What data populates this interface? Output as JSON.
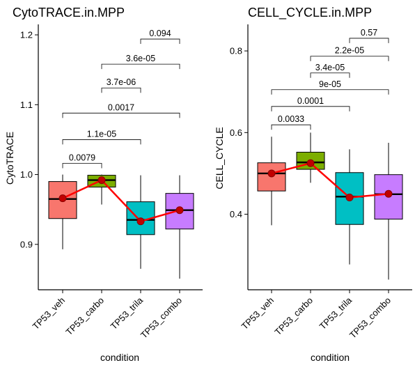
{
  "chart_data": [
    {
      "type": "box",
      "title": "CytoTRACE.in.MPP",
      "xlabel": "condition",
      "ylabel": "CytoTRACE",
      "ylim": [
        0.835,
        1.215
      ],
      "yticks": [
        0.9,
        1.0,
        1.1,
        1.2
      ],
      "ytick_labels": [
        "0.9",
        "1.0",
        "1.1",
        "1.2"
      ],
      "categories": [
        "TP53_veh",
        "TP53_carbo",
        "TP53_trila",
        "TP53_combo"
      ],
      "colors": [
        "#F8766D",
        "#7CAE00",
        "#00BFC4",
        "#C77CFF"
      ],
      "boxes": [
        {
          "whisker_low": 0.893,
          "q1": 0.937,
          "median": 0.965,
          "q3": 0.99,
          "whisker_high": 1.0
        },
        {
          "whisker_low": 0.957,
          "q1": 0.982,
          "median": 0.992,
          "q3": 0.999,
          "whisker_high": 1.0
        },
        {
          "whisker_low": 0.865,
          "q1": 0.914,
          "median": 0.935,
          "q3": 0.961,
          "whisker_high": 0.999
        },
        {
          "whisker_low": 0.851,
          "q1": 0.922,
          "median": 0.949,
          "q3": 0.973,
          "whisker_high": 0.999
        }
      ],
      "means": [
        0.966,
        0.992,
        0.933,
        0.949
      ],
      "comparisons": [
        {
          "from": 0,
          "to": 1,
          "y": 1.016,
          "label": "0.0079"
        },
        {
          "from": 0,
          "to": 2,
          "y": 1.05,
          "label": "1.1e-05"
        },
        {
          "from": 0,
          "to": 3,
          "y": 1.088,
          "label": "0.0017"
        },
        {
          "from": 1,
          "to": 2,
          "y": 1.124,
          "label": "3.7e-06"
        },
        {
          "from": 1,
          "to": 3,
          "y": 1.158,
          "label": "3.6e-05"
        },
        {
          "from": 2,
          "to": 3,
          "y": 1.194,
          "label": "0.094"
        }
      ]
    },
    {
      "type": "box",
      "title": "CELL_CYCLE.in.MPP",
      "xlabel": "condition",
      "ylabel": "CELL_CYCLE",
      "ylim": [
        0.215,
        0.865
      ],
      "yticks": [
        0.4,
        0.6,
        0.8
      ],
      "ytick_labels": [
        "0.4",
        "0.6",
        "0.8"
      ],
      "categories": [
        "TP53_veh",
        "TP53_carbo",
        "TP53_trila",
        "TP53_combo"
      ],
      "colors": [
        "#F8766D",
        "#7CAE00",
        "#00BFC4",
        "#C77CFF"
      ],
      "boxes": [
        {
          "whisker_low": 0.373,
          "q1": 0.457,
          "median": 0.5,
          "q3": 0.526,
          "whisker_high": 0.59
        },
        {
          "whisker_low": 0.477,
          "q1": 0.51,
          "median": 0.527,
          "q3": 0.552,
          "whisker_high": 0.6
        },
        {
          "whisker_low": 0.277,
          "q1": 0.375,
          "median": 0.443,
          "q3": 0.502,
          "whisker_high": 0.559
        },
        {
          "whisker_low": 0.24,
          "q1": 0.388,
          "median": 0.449,
          "q3": 0.497,
          "whisker_high": 0.575
        }
      ],
      "means": [
        0.5,
        0.525,
        0.441,
        0.45
      ],
      "comparisons": [
        {
          "from": 0,
          "to": 1,
          "y": 0.619,
          "label": "0.0033"
        },
        {
          "from": 0,
          "to": 2,
          "y": 0.664,
          "label": "0.0001"
        },
        {
          "from": 0,
          "to": 3,
          "y": 0.705,
          "label": "9e-05"
        },
        {
          "from": 1,
          "to": 2,
          "y": 0.746,
          "label": "3.4e-05"
        },
        {
          "from": 1,
          "to": 3,
          "y": 0.787,
          "label": "2.2e-05"
        },
        {
          "from": 2,
          "to": 3,
          "y": 0.831,
          "label": "0.57"
        }
      ]
    }
  ]
}
